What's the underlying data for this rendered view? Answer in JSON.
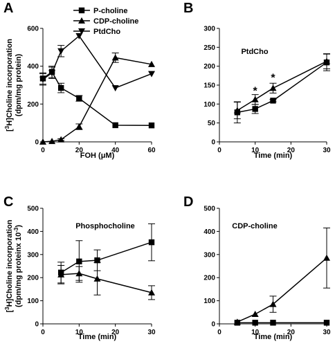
{
  "chart_data": [
    {
      "panel": "A",
      "type": "line",
      "xlabel": "FOH (μM)",
      "ylabel_prefix": "[",
      "ylabel_sup": "3",
      "ylabel_main": "H]Choline incorporation",
      "ylabel_line2": "(dpm/mg protein)",
      "xlim": [
        0,
        60
      ],
      "ylim": [
        0,
        600
      ],
      "xticks": [
        0,
        20,
        40,
        60
      ],
      "yticks": [
        0,
        200,
        400,
        600
      ],
      "legend_position": "top-center",
      "series": [
        {
          "name": "P-choline",
          "marker": "square",
          "x": [
            0,
            5,
            10,
            20,
            40,
            60
          ],
          "y": [
            335,
            370,
            285,
            230,
            88,
            87
          ],
          "err": [
            30,
            30,
            25,
            15,
            0,
            0
          ]
        },
        {
          "name": "CDP-choline",
          "marker": "triangle-up",
          "x": [
            0,
            5,
            10,
            20,
            40,
            60
          ],
          "y": [
            0,
            3,
            12,
            80,
            445,
            410
          ],
          "err": [
            0,
            0,
            5,
            15,
            25,
            0
          ]
        },
        {
          "name": "PtdCho",
          "marker": "triangle-down",
          "x": [
            0,
            5,
            10,
            20,
            40,
            60
          ],
          "y": [
            330,
            365,
            480,
            560,
            285,
            360
          ],
          "err": [
            30,
            30,
            30,
            0,
            0,
            0
          ]
        }
      ]
    },
    {
      "panel": "B",
      "type": "line",
      "title": "PtdCho",
      "xlabel": "Time (min)",
      "xlim": [
        0,
        30
      ],
      "ylim": [
        0,
        300
      ],
      "xticks": [
        0,
        10,
        20,
        30
      ],
      "yticks": [
        0,
        50,
        100,
        150,
        200,
        250,
        300
      ],
      "annotations": [
        {
          "text": "*",
          "x": 10,
          "y": 125
        },
        {
          "text": "*",
          "x": 15,
          "y": 160
        }
      ],
      "series": [
        {
          "marker": "square",
          "x": [
            5,
            10,
            15,
            30
          ],
          "y": [
            78,
            87,
            109,
            210
          ],
          "err": [
            28,
            12,
            3,
            22
          ]
        },
        {
          "marker": "triangle-up",
          "x": [
            5,
            10,
            15,
            30
          ],
          "y": [
            83,
            112,
            142,
            213
          ],
          "err": [
            22,
            13,
            13,
            20
          ]
        }
      ]
    },
    {
      "panel": "C",
      "type": "line",
      "title": "Phosphocholine",
      "xlabel": "Time (min)",
      "ylabel_prefix": "[",
      "ylabel_sup": "3",
      "ylabel_main": "H]Choline incorporation",
      "ylabel_line2_main": "(dpm/mg proteinx 10",
      "ylabel_line2_sup": "-3",
      "ylabel_line2_end": ")",
      "xlim": [
        0,
        30
      ],
      "ylim": [
        0,
        500
      ],
      "xticks": [
        0,
        10,
        20,
        30
      ],
      "yticks": [
        0,
        100,
        200,
        300,
        400,
        500
      ],
      "series": [
        {
          "marker": "square",
          "x": [
            5,
            10,
            15,
            30
          ],
          "y": [
            222,
            270,
            275,
            353
          ],
          "err": [
            45,
            90,
            45,
            80
          ]
        },
        {
          "marker": "triangle-up",
          "x": [
            5,
            10,
            15,
            30
          ],
          "y": [
            213,
            218,
            195,
            135
          ],
          "err": [
            40,
            30,
            70,
            30
          ]
        }
      ]
    },
    {
      "panel": "D",
      "type": "line",
      "title": "CDP-choline",
      "xlabel": "Time (min)",
      "xlim": [
        0,
        30
      ],
      "ylim": [
        0,
        500
      ],
      "xticks": [
        0,
        10,
        20,
        30
      ],
      "yticks": [
        0,
        100,
        200,
        300,
        400,
        500
      ],
      "series": [
        {
          "marker": "square",
          "x": [
            5,
            10,
            15,
            30
          ],
          "y": [
            5,
            5,
            5,
            5
          ],
          "err": [
            0,
            0,
            0,
            0
          ]
        },
        {
          "marker": "triangle-up",
          "x": [
            5,
            10,
            15,
            30
          ],
          "y": [
            8,
            42,
            85,
            285
          ],
          "err": [
            0,
            0,
            35,
            130
          ]
        }
      ]
    }
  ]
}
